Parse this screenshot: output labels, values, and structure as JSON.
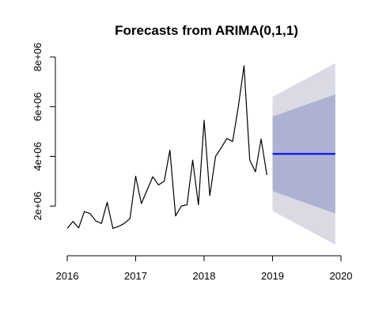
{
  "chart_data": {
    "type": "line",
    "title": "Forecasts from ARIMA(0,1,1)",
    "xlabel": "",
    "ylabel": "",
    "xlim": [
      2016,
      2020
    ],
    "ylim": [
      0,
      8000000
    ],
    "x_ticks": [
      2016,
      2017,
      2018,
      2019,
      2020
    ],
    "x_tick_labels": [
      "2016",
      "2017",
      "2018",
      "2019",
      "2020"
    ],
    "y_ticks": [
      2000000,
      4000000,
      6000000,
      8000000
    ],
    "y_tick_labels": [
      "2e+06",
      "4e+06",
      "6e+06",
      "8e+06"
    ],
    "grid": false,
    "legend": "none",
    "series": [
      {
        "role": "observed",
        "color": "#000000",
        "x": [
          2016.0,
          2016.083,
          2016.167,
          2016.25,
          2016.333,
          2016.417,
          2016.5,
          2016.583,
          2016.667,
          2016.75,
          2016.833,
          2016.917,
          2017.0,
          2017.083,
          2017.167,
          2017.25,
          2017.333,
          2017.417,
          2017.5,
          2017.583,
          2017.667,
          2017.75,
          2017.833,
          2017.917,
          2018.0,
          2018.083,
          2018.167,
          2018.25,
          2018.333,
          2018.417,
          2018.5,
          2018.583,
          2018.667,
          2018.75,
          2018.833,
          2018.917
        ],
        "y": [
          1100000,
          1380000,
          1120000,
          1780000,
          1700000,
          1400000,
          1300000,
          2150000,
          1100000,
          1180000,
          1300000,
          1500000,
          3200000,
          2100000,
          2650000,
          3180000,
          2850000,
          3000000,
          4250000,
          1600000,
          2000000,
          2050000,
          3850000,
          2050000,
          5450000,
          2420000,
          4000000,
          4350000,
          4720000,
          4600000,
          6000000,
          7650000,
          3850000,
          3380000,
          4700000,
          3250000
        ]
      },
      {
        "role": "forecast",
        "color": "#0000ff",
        "x": [
          2019.0,
          2019.917
        ],
        "y": [
          4100000,
          4100000
        ]
      }
    ],
    "intervals": [
      {
        "level": "95%",
        "color": "#dadae5",
        "x": [
          2019.0,
          2019.917
        ],
        "lower": [
          1800000,
          450000
        ],
        "upper": [
          6400000,
          7750000
        ]
      },
      {
        "level": "80%",
        "color": "#adb2d2",
        "x": [
          2019.0,
          2019.917
        ],
        "lower": [
          2600000,
          1700000
        ],
        "upper": [
          5600000,
          6500000
        ]
      }
    ]
  }
}
